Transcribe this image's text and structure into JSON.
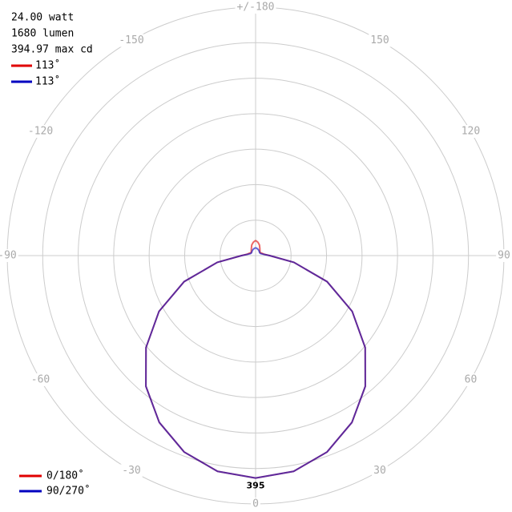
{
  "chart_data": {
    "type": "polar",
    "info": [
      "24.00 watt",
      "1680 lumen",
      "394.97 max cd"
    ],
    "theta": [
      -180,
      -170,
      -160,
      -150,
      -140,
      -130,
      -120,
      -110,
      -100,
      -90,
      -80,
      -70,
      -60,
      -50,
      -40,
      -30,
      -20,
      -10,
      0,
      10,
      20,
      30,
      40,
      50,
      60,
      70,
      80,
      90,
      100,
      110,
      120,
      130,
      140,
      150,
      160,
      170,
      180
    ],
    "series": [
      {
        "name": "0/180˚",
        "beam_label": "113˚",
        "color": "#e00000",
        "values": [
          27,
          24,
          20,
          15,
          12,
          10,
          10,
          12,
          15,
          25,
          69,
          135,
          198,
          254,
          303,
          342,
          371,
          389,
          395,
          389,
          371,
          342,
          303,
          254,
          198,
          135,
          69,
          25,
          15,
          12,
          10,
          10,
          12,
          15,
          20,
          24,
          27
        ]
      },
      {
        "name": "90/270˚",
        "beam_label": "113˚",
        "color": "#0000c0",
        "values": [
          14,
          13,
          12,
          11,
          10,
          9,
          9,
          10,
          14,
          25,
          69,
          135,
          198,
          254,
          303,
          342,
          371,
          389,
          395,
          389,
          371,
          342,
          303,
          254,
          198,
          135,
          69,
          25,
          14,
          10,
          9,
          9,
          10,
          11,
          12,
          13,
          14
        ]
      }
    ],
    "max_label": {
      "value": 395,
      "label": "395"
    },
    "rlim": [
      0,
      441
    ],
    "rticks": [
      63,
      126,
      189,
      252,
      315,
      378,
      441
    ],
    "thetaticks": [
      {
        "value": 180,
        "label": "+/-180"
      },
      150,
      120,
      90,
      60,
      30,
      0,
      -30,
      -60,
      -90,
      -120,
      -150
    ],
    "grid": true
  }
}
